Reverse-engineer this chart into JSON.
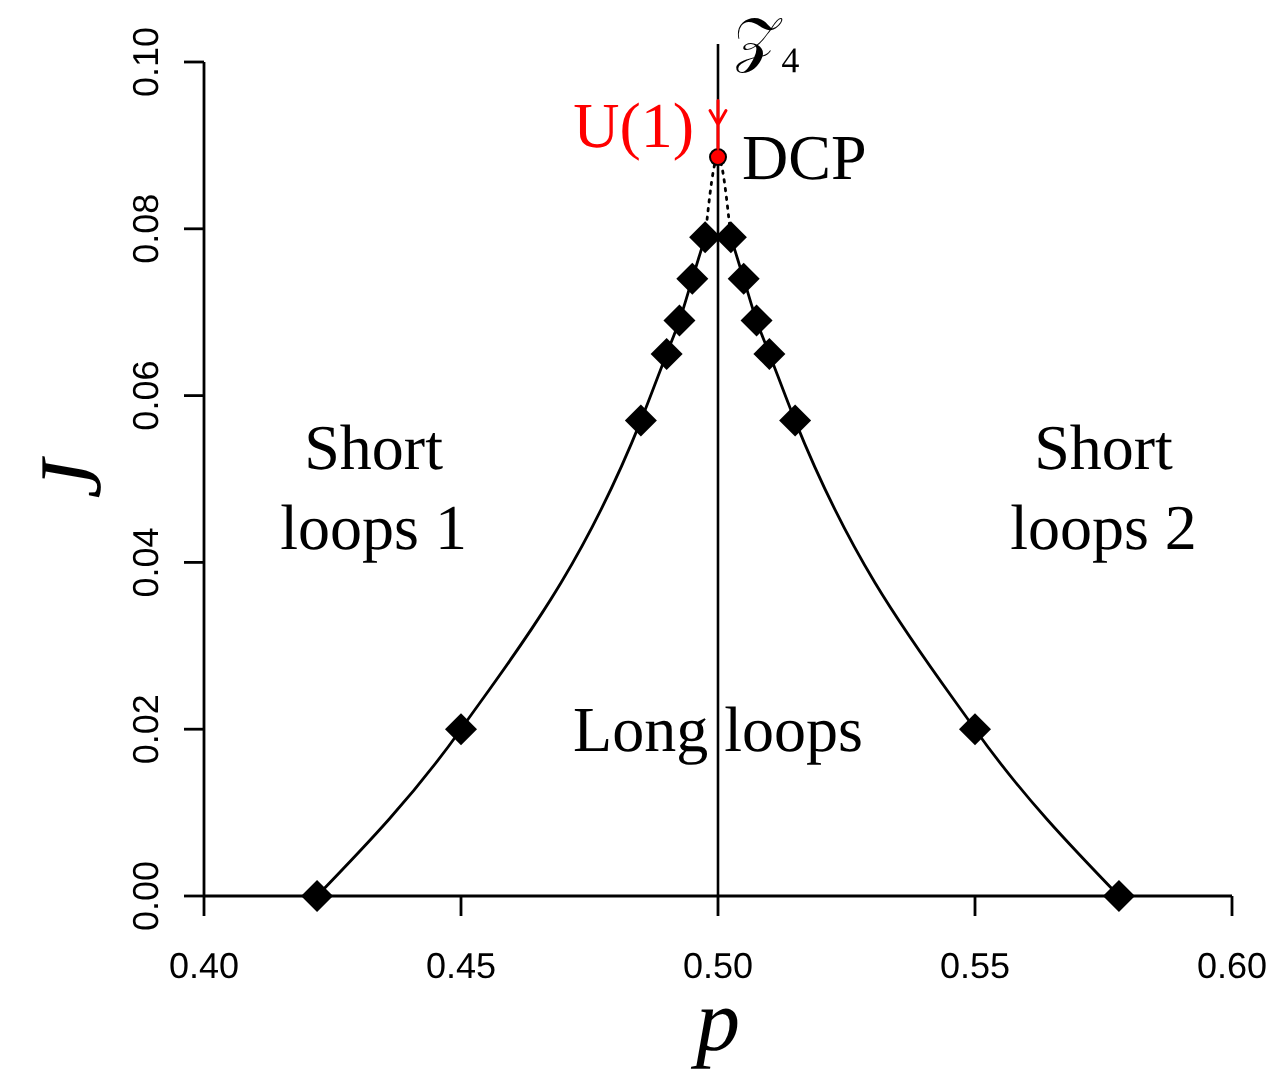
{
  "chart_data": {
    "type": "line",
    "xlabel": "p",
    "ylabel": "J",
    "xlim": [
      0.4,
      0.6
    ],
    "ylim": [
      0,
      0.1
    ],
    "xticks": [
      {
        "value": 0.4,
        "label": "0.40"
      },
      {
        "value": 0.45,
        "label": "0.45"
      },
      {
        "value": 0.5,
        "label": "0.50"
      },
      {
        "value": 0.55,
        "label": "0.55"
      },
      {
        "value": 0.6,
        "label": "0.60"
      }
    ],
    "yticks": [
      {
        "value": 0,
        "label": "0.00"
      },
      {
        "value": 0.02,
        "label": "0.02"
      },
      {
        "value": 0.04,
        "label": "0.04"
      },
      {
        "value": 0.06,
        "label": "0.06"
      },
      {
        "value": 0.08,
        "label": "0.08"
      },
      {
        "value": 0.1,
        "label": "0.10"
      }
    ],
    "marker": "diamond",
    "line_style": "solid",
    "series": [
      {
        "color": "#000000",
        "x": [
          0.422,
          0.45,
          0.485,
          0.49,
          0.4925,
          0.495,
          0.4975
        ],
        "values": [
          0,
          0.02,
          0.057,
          0.065,
          0.069,
          0.074,
          0.079
        ]
      },
      {
        "color": "#000000",
        "x": [
          0.5025,
          0.505,
          0.5075,
          0.51,
          0.515,
          0.55,
          0.578
        ],
        "values": [
          0.079,
          0.074,
          0.069,
          0.065,
          0.057,
          0.02,
          0
        ]
      },
      {
        "color": "#000000",
        "x": [
          0.4975,
          0.5,
          0.5025
        ],
        "values": [
          0.079,
          0.0886,
          0.079
        ],
        "marker": "none",
        "line_style": "dotted"
      },
      {
        "type": "scatter",
        "color": "#ff0000",
        "x": [
          0.5
        ],
        "values": [
          0.0886
        ],
        "marker": "circle"
      }
    ],
    "ref_lines": [
      {
        "axis": "x",
        "value": 0.5,
        "label": "𝒵₄",
        "color": "#000000"
      }
    ],
    "annotations": [
      "Short\nloops 1",
      "Short\nloops 2",
      "Long loops",
      {
        "text": "U(1)",
        "x": 0.5,
        "y": 0.0925
      },
      {
        "text": "DCP",
        "x": 0.5,
        "y": 0.0886
      }
    ]
  }
}
